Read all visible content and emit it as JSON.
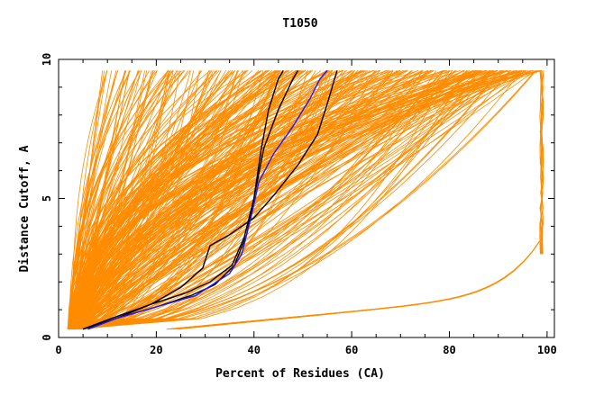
{
  "chart_data": {
    "type": "line",
    "title": "T1050",
    "xlabel": "Percent of Residues (CA)",
    "ylabel": "Distance Cutoff, A",
    "xlim": [
      0,
      101.5
    ],
    "ylim": [
      0,
      10
    ],
    "xticks": [
      0,
      20,
      40,
      60,
      80,
      100
    ],
    "xtick_labels": [
      "0",
      "20",
      "40",
      "60",
      "80",
      "100"
    ],
    "yticks": [
      0,
      5,
      10
    ],
    "ytick_labels": [
      "0",
      "5",
      "10"
    ],
    "grid": false,
    "colors": {
      "models": "#ff8c00",
      "highlight_black": "#000000",
      "highlight_blue": "#1a1aff"
    },
    "series": [
      {
        "color": "#000000",
        "points": [
          [
            5,
            0.3
          ],
          [
            12,
            0.7
          ],
          [
            20,
            1.1
          ],
          [
            27,
            1.5
          ],
          [
            32,
            1.9
          ],
          [
            36,
            2.6
          ],
          [
            38.5,
            3.7
          ],
          [
            40,
            5.0
          ],
          [
            41.5,
            6.8
          ],
          [
            43,
            8.2
          ],
          [
            45,
            9.3
          ],
          [
            46,
            9.6
          ]
        ]
      },
      {
        "color": "#000000",
        "points": [
          [
            5,
            0.3
          ],
          [
            11,
            0.7
          ],
          [
            19,
            1.2
          ],
          [
            26,
            1.6
          ],
          [
            31,
            2.0
          ],
          [
            35.5,
            2.6
          ],
          [
            38,
            3.6
          ],
          [
            40,
            5.0
          ],
          [
            42,
            6.8
          ],
          [
            45,
            8.2
          ],
          [
            48,
            9.3
          ],
          [
            49,
            9.6
          ]
        ]
      },
      {
        "color": "#000000",
        "points": [
          [
            6,
            0.3
          ],
          [
            12,
            0.7
          ],
          [
            19,
            1.2
          ],
          [
            25,
            1.8
          ],
          [
            29.5,
            2.5
          ],
          [
            31,
            3.3
          ],
          [
            35,
            3.7
          ],
          [
            40,
            4.3
          ],
          [
            44,
            5.1
          ],
          [
            49,
            6.2
          ],
          [
            53,
            7.3
          ],
          [
            55,
            8.4
          ],
          [
            56.5,
            9.3
          ],
          [
            57,
            9.6
          ]
        ]
      },
      {
        "color": "#1a1aff",
        "points": [
          [
            6,
            0.3
          ],
          [
            12,
            0.7
          ],
          [
            20,
            1.1
          ],
          [
            28,
            1.5
          ],
          [
            35,
            2.3
          ],
          [
            37.5,
            3.0
          ],
          [
            39.5,
            4.4
          ],
          [
            41,
            5.6
          ],
          [
            44,
            6.6
          ],
          [
            48,
            7.6
          ],
          [
            51.5,
            8.6
          ],
          [
            53.5,
            9.3
          ],
          [
            55,
            9.6
          ]
        ]
      }
    ]
  }
}
